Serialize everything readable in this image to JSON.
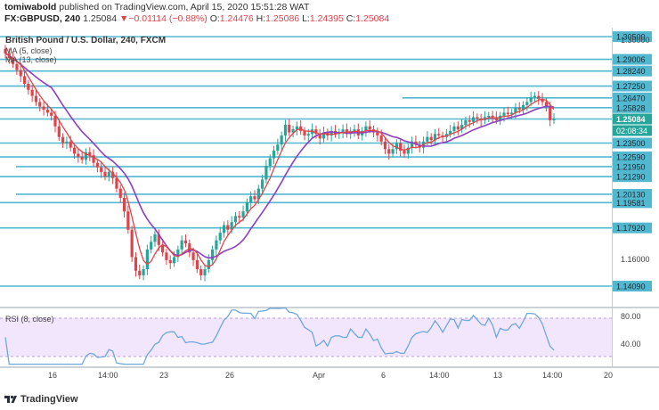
{
  "header": {
    "author": "tomiwabold",
    "published_text": "published on TradingView.com, April 15, 2020 15:51:28 WAT",
    "symbol": "FX:GBPUSD, 240",
    "last": "1.25084",
    "change_arrow": "▼",
    "change": "−0.01114 (−0.88%)",
    "o_label": "O:",
    "o_value": "1.24476",
    "h_label": "H:",
    "h_value": "1.25086",
    "l_label": "L:",
    "l_value": "1.24395",
    "c_label": "C:",
    "c_value": "1.25084"
  },
  "legend": {
    "title": "British Pound / U.S. Dollar, 240, FXCM",
    "ma5": "MA (5, close)",
    "ma13": "MA (13, close)",
    "rsi": "RSI (8, close)"
  },
  "price_axis": {
    "ticks": [
      "1.30000",
      "1.16000"
    ],
    "level_labels": [
      "1.30500",
      "1.29006",
      "1.28240",
      "1.27250",
      "1.26470",
      "1.25828",
      "1.23500",
      "1.22590",
      "1.21950",
      "1.21290",
      "1.20130",
      "1.19581",
      "1.17920",
      "1.14090"
    ],
    "last_price_label": "1.25084",
    "countdown_label": "02:08:34"
  },
  "rsi_axis": {
    "ticks": [
      "80.00",
      "40.00"
    ]
  },
  "time_axis": {
    "ticks": [
      "16",
      "14:00",
      "23",
      "26",
      "Apr",
      "6",
      "14:00",
      "13",
      "14:00",
      "20"
    ]
  },
  "footer": {
    "brand": "TradingView"
  },
  "colors": {
    "up": "#26a69a",
    "down": "#e0434a",
    "ma5": "#e0434a",
    "ma13": "#8e3fc2",
    "level_line": "#52b8d0",
    "rsi_line": "#6fa8dc",
    "rsi_band": "#f1e6fb",
    "last_label": "#26a69a"
  },
  "chart_data": {
    "type": "candlestick",
    "symbol": "GBPUSD",
    "timeframe": "240",
    "price_range": [
      1.128,
      1.308
    ],
    "horizontal_levels": [
      1.305,
      1.29006,
      1.2824,
      1.2725,
      1.2647,
      1.25828,
      1.25084,
      1.235,
      1.2259,
      1.2195,
      1.2129,
      1.2013,
      1.19581,
      1.1792,
      1.1409
    ],
    "rsi_range": [
      0,
      100
    ],
    "rsi_levels": [
      80,
      20
    ],
    "closes": [
      1.294,
      1.291,
      1.287,
      1.283,
      1.279,
      1.274,
      1.27,
      1.266,
      1.262,
      1.259,
      1.257,
      1.255,
      1.253,
      1.246,
      1.239,
      1.235,
      1.236,
      1.232,
      1.228,
      1.226,
      1.224,
      1.229,
      1.227,
      1.222,
      1.219,
      1.216,
      1.213,
      1.216,
      1.212,
      1.205,
      1.199,
      1.19,
      1.178,
      1.16,
      1.151,
      1.148,
      1.152,
      1.165,
      1.17,
      1.175,
      1.168,
      1.163,
      1.158,
      1.156,
      1.16,
      1.165,
      1.171,
      1.169,
      1.163,
      1.158,
      1.152,
      1.148,
      1.152,
      1.158,
      1.165,
      1.171,
      1.176,
      1.181,
      1.178,
      1.183,
      1.187,
      1.186,
      1.19,
      1.196,
      1.2,
      1.198,
      1.205,
      1.211,
      1.22,
      1.225,
      1.23,
      1.234,
      1.24,
      1.247,
      1.242,
      1.244,
      1.246,
      1.243,
      1.24,
      1.241,
      1.244,
      1.241,
      1.238,
      1.242,
      1.24,
      1.243,
      1.241,
      1.242,
      1.244,
      1.241,
      1.243,
      1.244,
      1.24,
      1.243,
      1.246,
      1.244,
      1.242,
      1.24,
      1.236,
      1.231,
      1.228,
      1.231,
      1.235,
      1.23,
      1.228,
      1.232,
      1.236,
      1.234,
      1.232,
      1.236,
      1.239,
      1.237,
      1.241,
      1.24,
      1.239,
      1.241,
      1.243,
      1.246,
      1.244,
      1.247,
      1.25,
      1.249,
      1.252,
      1.251,
      1.25,
      1.252,
      1.253,
      1.252,
      1.25,
      1.253,
      1.255,
      1.254,
      1.255,
      1.258,
      1.257,
      1.26,
      1.262,
      1.265,
      1.266,
      1.264,
      1.262,
      1.259,
      1.25,
      1.25084
    ]
  }
}
